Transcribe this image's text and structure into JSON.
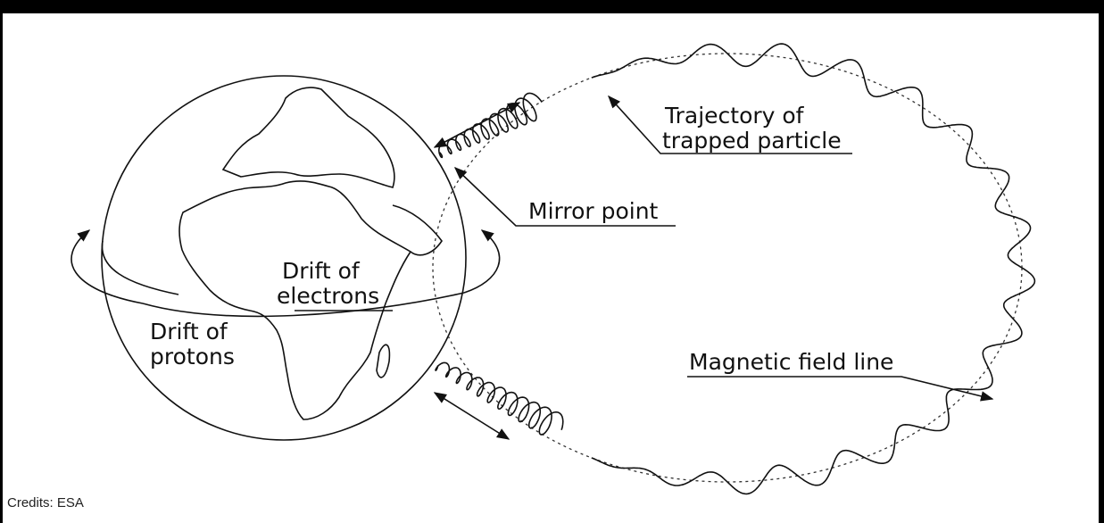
{
  "labels": {
    "trajectory": [
      "Trajectory of",
      "trapped particle"
    ],
    "mirror": "Mirror point",
    "electrons": [
      "Drift of",
      "electrons"
    ],
    "protons": [
      "Drift of",
      "protons"
    ],
    "field_line": "Magnetic field line"
  },
  "credit": "Credits: ESA"
}
